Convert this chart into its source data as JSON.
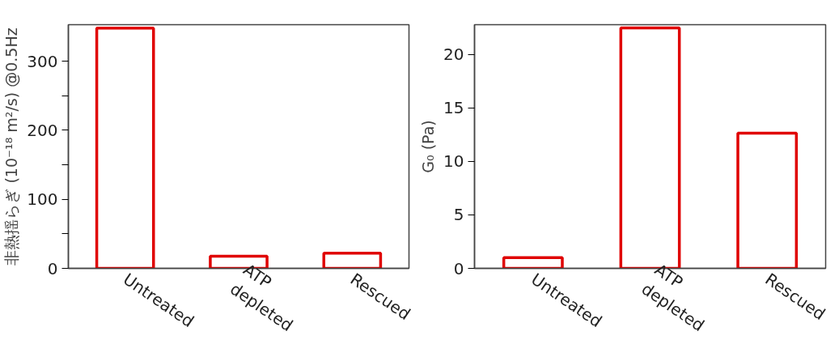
{
  "chart_data": [
    {
      "type": "bar",
      "ylabel": "非熱揺らぎ (10⁻¹⁸ m²/s) @0.5Hz",
      "categories": [
        "Untreated",
        "ATP\ndepleted",
        "Rescued"
      ],
      "values": [
        348,
        17.5,
        22
      ],
      "color": "#e00000",
      "ylim": [
        0,
        353
      ],
      "yticks": [
        0,
        {
          "value": 50,
          "label": null
        },
        100,
        {
          "value": 150,
          "label": null
        },
        200,
        {
          "value": 250,
          "label": null
        },
        300
      ]
    },
    {
      "type": "bar",
      "ylabel": "G₀ (Pa)",
      "categories": [
        "Untreated",
        "ATP\ndepleted",
        "Rescued"
      ],
      "values": [
        1.0,
        22.5,
        12.65
      ],
      "color": "#e00000",
      "ylim": [
        0,
        22.8
      ],
      "yticks": [
        0,
        5,
        10,
        15,
        20
      ]
    }
  ]
}
